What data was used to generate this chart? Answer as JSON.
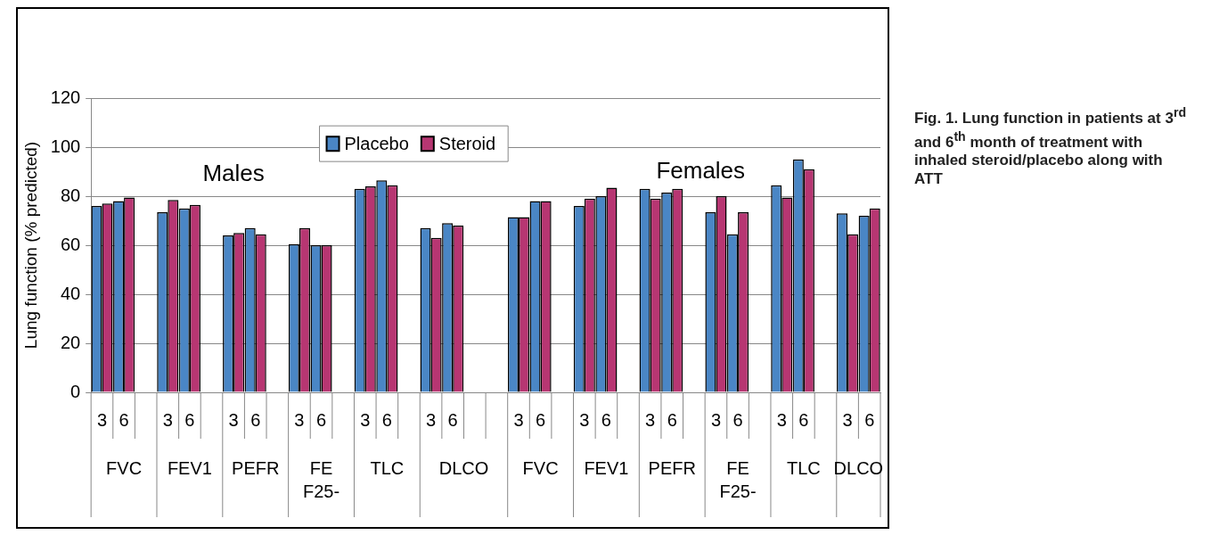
{
  "chart_data": {
    "type": "bar",
    "title": "Fig. 1. Lung function in patients at 3$^{rd}$ and 6$^{th}$ month of treatment with inhaled steroid/placebo along with ATT",
    "ylabel": "Lung function (% predicted)",
    "categories": [
      "3",
      "6",
      null,
      "3",
      "6",
      null,
      "3",
      "6",
      null,
      "3",
      "6",
      null,
      "3",
      "6",
      null,
      "3",
      "6",
      null,
      null,
      "3",
      "6",
      null,
      "3",
      "6",
      null,
      "3",
      "6",
      null,
      "3",
      "6",
      null,
      "3",
      "6",
      null,
      "3",
      "6"
    ],
    "series": [
      {
        "name": "Placebo",
        "color": "#4a86c5",
        "values": [
          76,
          78,
          null,
          73.5,
          75,
          null,
          64,
          67,
          null,
          60.5,
          60,
          null,
          83,
          86.5,
          null,
          67,
          69,
          null,
          null,
          71.5,
          78,
          null,
          76,
          80,
          null,
          83,
          81.5,
          null,
          73.5,
          64.5,
          null,
          84.5,
          95,
          null,
          73,
          72
        ]
      },
      {
        "name": "Steroid",
        "color": "#b73672",
        "values": [
          77,
          79.5,
          null,
          78.5,
          76.5,
          null,
          65,
          64.5,
          null,
          67,
          60,
          null,
          84,
          84.5,
          null,
          63,
          68,
          null,
          null,
          71.5,
          78,
          null,
          79,
          83.5,
          null,
          79,
          83,
          null,
          80,
          73.5,
          null,
          79.5,
          91,
          null,
          64.5,
          75
        ]
      }
    ],
    "annotations": [
      "Males",
      "Females",
      "FVC",
      "FEV1",
      "PEFR",
      "FE F25-",
      "TLC",
      "DLCO",
      "FVC",
      "FEV1",
      "PEFR",
      "FE F25-",
      "TLC",
      "DLCO"
    ],
    "ylim": [
      0,
      120
    ],
    "yticks": [
      0,
      20,
      40,
      60,
      80,
      100,
      120
    ],
    "grid": "y",
    "legend": "top"
  }
}
